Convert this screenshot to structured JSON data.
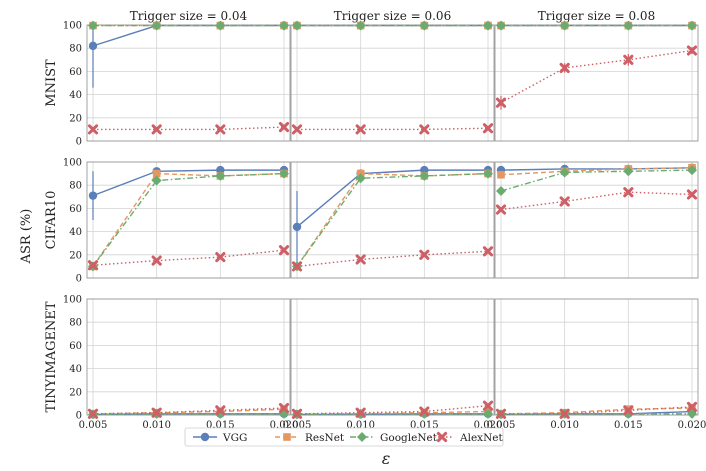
{
  "figure": {
    "ylabel": "ASR (%)",
    "xlabel": "ε",
    "legend": {
      "placement": "bottom-center",
      "entries": [
        {
          "name": "VGG",
          "color": "#5a7fb9",
          "marker": "circle",
          "dash": "solid"
        },
        {
          "name": "ResNet",
          "color": "#e4975f",
          "marker": "square",
          "dash": "dashed"
        },
        {
          "name": "GoogleNet",
          "color": "#6aac6f",
          "marker": "diamond",
          "dash": "dashdot"
        },
        {
          "name": "AlexNet",
          "color": "#cf5f67",
          "marker": "x",
          "dash": "dotted"
        }
      ]
    }
  },
  "chart_data": [
    {
      "type": "line",
      "row_label": "MNIST",
      "title": "Trigger size = 0.04",
      "x": [
        0.005,
        0.01,
        0.015,
        0.02
      ],
      "x_tick_labels": [
        "0.005",
        "0.010",
        "0.015",
        "0.020"
      ],
      "ylim": [
        0,
        100
      ],
      "y_ticks": [
        0,
        20,
        40,
        60,
        80,
        100
      ],
      "grid": true,
      "series": [
        {
          "name": "VGG",
          "values": [
            82,
            99.5,
            99.5,
            99.5
          ],
          "err_low": [
            36,
            0,
            0,
            0
          ],
          "err_high": [
            17,
            0,
            0,
            0
          ]
        },
        {
          "name": "ResNet",
          "values": [
            99.5,
            99.5,
            99.5,
            99.5
          ]
        },
        {
          "name": "GoogleNet",
          "values": [
            99.5,
            99.5,
            99.5,
            99.5
          ]
        },
        {
          "name": "AlexNet",
          "values": [
            10,
            10,
            10,
            12
          ]
        }
      ]
    },
    {
      "type": "line",
      "row_label": "MNIST",
      "title": "Trigger size = 0.06",
      "x": [
        0.005,
        0.01,
        0.015,
        0.02
      ],
      "x_tick_labels": [
        "0.005",
        "0.010",
        "0.015",
        "0.020"
      ],
      "ylim": [
        0,
        100
      ],
      "y_ticks": [
        0,
        20,
        40,
        60,
        80,
        100
      ],
      "grid": true,
      "series": [
        {
          "name": "VGG",
          "values": [
            99.5,
            99.5,
            99.5,
            99.5
          ]
        },
        {
          "name": "ResNet",
          "values": [
            99.5,
            99.5,
            99.5,
            99.5
          ]
        },
        {
          "name": "GoogleNet",
          "values": [
            99.5,
            99.5,
            99.5,
            99.5
          ]
        },
        {
          "name": "AlexNet",
          "values": [
            10,
            10,
            10,
            11
          ]
        }
      ]
    },
    {
      "type": "line",
      "row_label": "MNIST",
      "title": "Trigger size = 0.08",
      "x": [
        0.005,
        0.01,
        0.015,
        0.02
      ],
      "x_tick_labels": [
        "0.005",
        "0.010",
        "0.015",
        "0.020"
      ],
      "ylim": [
        0,
        100
      ],
      "y_ticks": [
        0,
        20,
        40,
        60,
        80,
        100
      ],
      "grid": true,
      "series": [
        {
          "name": "VGG",
          "values": [
            99.5,
            99.5,
            99.5,
            99.5
          ]
        },
        {
          "name": "ResNet",
          "values": [
            99.5,
            99.5,
            99.5,
            99.5
          ]
        },
        {
          "name": "GoogleNet",
          "values": [
            99.5,
            99.5,
            99.5,
            99.5
          ]
        },
        {
          "name": "AlexNet",
          "values": [
            33,
            63,
            70,
            78
          ],
          "err_low": [
            6,
            4,
            5,
            3
          ],
          "err_high": [
            6,
            4,
            5,
            3
          ]
        }
      ]
    },
    {
      "type": "line",
      "row_label": "CIFAR10",
      "title": "",
      "x": [
        0.005,
        0.01,
        0.015,
        0.02
      ],
      "x_tick_labels": [
        "0.005",
        "0.010",
        "0.015",
        "0.020"
      ],
      "ylim": [
        0,
        100
      ],
      "y_ticks": [
        0,
        20,
        40,
        60,
        80,
        100
      ],
      "grid": true,
      "series": [
        {
          "name": "VGG",
          "values": [
            71,
            92,
            93,
            93
          ],
          "err_low": [
            21,
            0,
            0,
            0
          ],
          "err_high": [
            21,
            0,
            0,
            0
          ]
        },
        {
          "name": "ResNet",
          "values": [
            10,
            90,
            88,
            90
          ]
        },
        {
          "name": "GoogleNet",
          "values": [
            10,
            84,
            88,
            90
          ]
        },
        {
          "name": "AlexNet",
          "values": [
            11,
            15,
            18,
            24
          ]
        }
      ]
    },
    {
      "type": "line",
      "row_label": "CIFAR10",
      "title": "",
      "x": [
        0.005,
        0.01,
        0.015,
        0.02
      ],
      "x_tick_labels": [
        "0.005",
        "0.010",
        "0.015",
        "0.020"
      ],
      "ylim": [
        0,
        100
      ],
      "y_ticks": [
        0,
        20,
        40,
        60,
        80,
        100
      ],
      "grid": true,
      "series": [
        {
          "name": "VGG",
          "values": [
            44,
            90,
            93,
            93
          ],
          "err_low": [
            33,
            0,
            0,
            0
          ],
          "err_high": [
            31,
            0,
            0,
            0
          ]
        },
        {
          "name": "ResNet",
          "values": [
            10,
            90,
            88,
            90
          ]
        },
        {
          "name": "GoogleNet",
          "values": [
            10,
            86,
            88,
            90
          ]
        },
        {
          "name": "AlexNet",
          "values": [
            10,
            16,
            20,
            23
          ]
        }
      ]
    },
    {
      "type": "line",
      "row_label": "CIFAR10",
      "title": "",
      "x": [
        0.005,
        0.01,
        0.015,
        0.02
      ],
      "x_tick_labels": [
        "0.005",
        "0.010",
        "0.015",
        "0.020"
      ],
      "ylim": [
        0,
        100
      ],
      "y_ticks": [
        0,
        20,
        40,
        60,
        80,
        100
      ],
      "grid": true,
      "series": [
        {
          "name": "VGG",
          "values": [
            93,
            94,
            94,
            95
          ]
        },
        {
          "name": "ResNet",
          "values": [
            89,
            92,
            94,
            95
          ]
        },
        {
          "name": "GoogleNet",
          "values": [
            75,
            91,
            92,
            93
          ]
        },
        {
          "name": "AlexNet",
          "values": [
            59,
            66,
            74,
            72
          ]
        }
      ]
    },
    {
      "type": "line",
      "row_label": "TINYIMAGENET",
      "title": "",
      "x": [
        0.005,
        0.01,
        0.015,
        0.02
      ],
      "x_tick_labels": [
        "0.005",
        "0.010",
        "0.015",
        "0.020"
      ],
      "ylim": [
        0,
        100
      ],
      "y_ticks": [
        0,
        20,
        40,
        60,
        80,
        100
      ],
      "grid": true,
      "series": [
        {
          "name": "VGG",
          "values": [
            0.5,
            1,
            1,
            1
          ]
        },
        {
          "name": "ResNet",
          "values": [
            1,
            2,
            3,
            5
          ]
        },
        {
          "name": "GoogleNet",
          "values": [
            0.5,
            1,
            1,
            1
          ]
        },
        {
          "name": "AlexNet",
          "values": [
            1,
            2,
            4,
            6
          ]
        }
      ]
    },
    {
      "type": "line",
      "row_label": "TINYIMAGENET",
      "title": "",
      "x": [
        0.005,
        0.01,
        0.015,
        0.02
      ],
      "x_tick_labels": [
        "0.005",
        "0.010",
        "0.015",
        "0.020"
      ],
      "ylim": [
        0,
        100
      ],
      "y_ticks": [
        0,
        20,
        40,
        60,
        80,
        100
      ],
      "grid": true,
      "series": [
        {
          "name": "VGG",
          "values": [
            0.5,
            0.5,
            1,
            1
          ]
        },
        {
          "name": "ResNet",
          "values": [
            1,
            1,
            2,
            3
          ]
        },
        {
          "name": "GoogleNet",
          "values": [
            0.5,
            1,
            1,
            1
          ]
        },
        {
          "name": "AlexNet",
          "values": [
            1,
            2,
            3,
            8
          ]
        }
      ]
    },
    {
      "type": "line",
      "row_label": "TINYIMAGENET",
      "title": "",
      "x": [
        0.005,
        0.01,
        0.015,
        0.02
      ],
      "x_tick_labels": [
        "0.005",
        "0.010",
        "0.015",
        "0.020"
      ],
      "ylim": [
        0,
        100
      ],
      "y_ticks": [
        0,
        20,
        40,
        60,
        80,
        100
      ],
      "grid": true,
      "series": [
        {
          "name": "VGG",
          "values": [
            0.5,
            1,
            1,
            3
          ]
        },
        {
          "name": "ResNet",
          "values": [
            1,
            2,
            5,
            6
          ]
        },
        {
          "name": "GoogleNet",
          "values": [
            0.5,
            1,
            1,
            1
          ]
        },
        {
          "name": "AlexNet",
          "values": [
            1,
            1,
            4,
            7
          ]
        }
      ]
    }
  ]
}
